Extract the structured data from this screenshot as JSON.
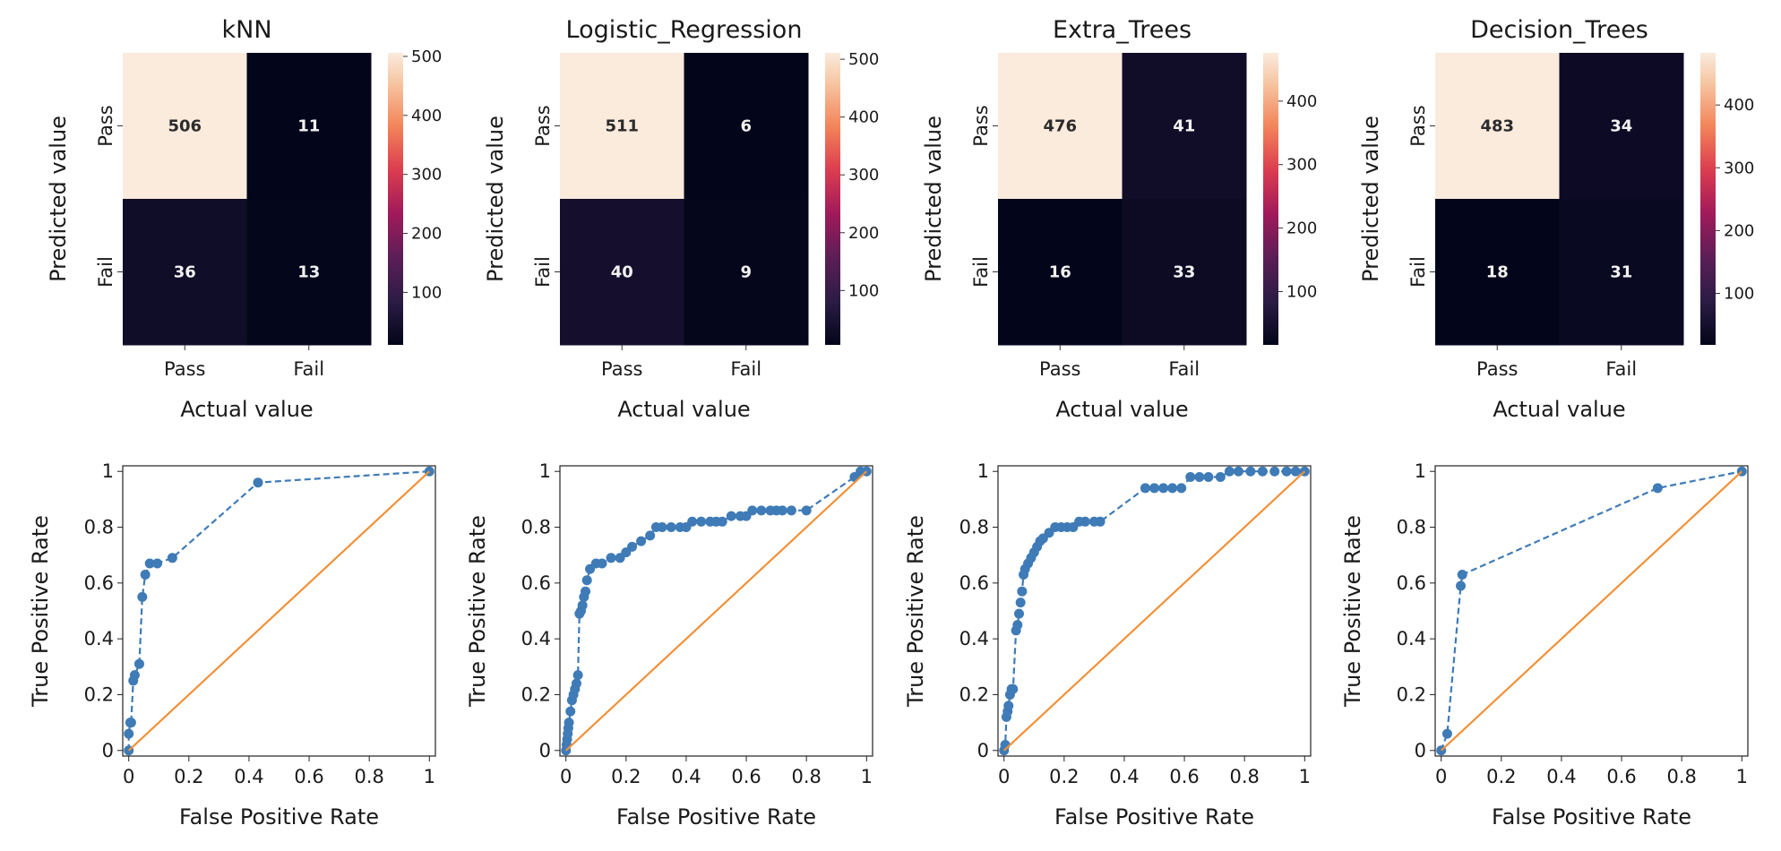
{
  "chart_data": [
    {
      "type": "heatmap",
      "title": "kNN",
      "xlabel": "Actual value",
      "ylabel": "Predicted value",
      "x_categories": [
        "Pass",
        "Fail"
      ],
      "y_categories": [
        "Pass",
        "Fail"
      ],
      "values": [
        [
          506,
          11
        ],
        [
          36,
          13
        ]
      ],
      "colorbar_ticks": [
        100,
        200,
        300,
        400,
        500
      ],
      "colorbar_range": [
        11,
        506
      ]
    },
    {
      "type": "heatmap",
      "title": "Logistic_Regression",
      "xlabel": "Actual value",
      "ylabel": "Predicted value",
      "x_categories": [
        "Pass",
        "Fail"
      ],
      "y_categories": [
        "Pass",
        "Fail"
      ],
      "values": [
        [
          511,
          6
        ],
        [
          40,
          9
        ]
      ],
      "colorbar_ticks": [
        100,
        200,
        300,
        400,
        500
      ],
      "colorbar_range": [
        6,
        511
      ]
    },
    {
      "type": "heatmap",
      "title": "Extra_Trees",
      "xlabel": "Actual value",
      "ylabel": "Predicted value",
      "x_categories": [
        "Pass",
        "Fail"
      ],
      "y_categories": [
        "Pass",
        "Fail"
      ],
      "values": [
        [
          476,
          41
        ],
        [
          16,
          33
        ]
      ],
      "colorbar_ticks": [
        100,
        200,
        300,
        400
      ],
      "colorbar_range": [
        16,
        476
      ]
    },
    {
      "type": "heatmap",
      "title": "Decision_Trees",
      "xlabel": "Actual value",
      "ylabel": "Predicted value",
      "x_categories": [
        "Pass",
        "Fail"
      ],
      "y_categories": [
        "Pass",
        "Fail"
      ],
      "values": [
        [
          483,
          34
        ],
        [
          18,
          31
        ]
      ],
      "colorbar_ticks": [
        100,
        200,
        300,
        400
      ],
      "colorbar_range": [
        18,
        483
      ]
    },
    {
      "type": "line",
      "xlabel": "False Positive Rate",
      "ylabel": "True Positive Rate",
      "xlim": [
        -0.02,
        1.02
      ],
      "ylim": [
        -0.02,
        1.02
      ],
      "xticks": [
        0,
        0.2,
        0.4,
        0.6,
        0.8,
        1.0
      ],
      "yticks": [
        0,
        0.2,
        0.4,
        0.6,
        0.8,
        1.0
      ],
      "series": [
        {
          "style": "dashed-markers",
          "color": "#3f7bb6",
          "x": [
            0,
            0,
            0.005,
            0.008,
            0.015,
            0.02,
            0.035,
            0.045,
            0.055,
            0.07,
            0.095,
            0.145,
            0.43,
            1.0
          ],
          "y": [
            0,
            0.06,
            0.1,
            0.1,
            0.25,
            0.27,
            0.31,
            0.55,
            0.63,
            0.67,
            0.67,
            0.69,
            0.96,
            1.0
          ]
        },
        {
          "style": "solid",
          "color": "#f0913a",
          "x": [
            0,
            1
          ],
          "y": [
            0,
            1
          ]
        }
      ]
    },
    {
      "type": "line",
      "xlabel": "False Positive Rate",
      "ylabel": "True Positive Rate",
      "xlim": [
        -0.02,
        1.02
      ],
      "ylim": [
        -0.02,
        1.02
      ],
      "xticks": [
        0,
        0.2,
        0.4,
        0.6,
        0.8,
        1.0
      ],
      "yticks": [
        0,
        0.2,
        0.4,
        0.6,
        0.8,
        1.0
      ],
      "series": [
        {
          "style": "dashed-markers",
          "color": "#3f7bb6",
          "x": [
            0,
            0.002,
            0.004,
            0.006,
            0.008,
            0.01,
            0.015,
            0.02,
            0.025,
            0.03,
            0.035,
            0.04,
            0.045,
            0.05,
            0.055,
            0.06,
            0.065,
            0.07,
            0.08,
            0.1,
            0.12,
            0.15,
            0.18,
            0.2,
            0.22,
            0.25,
            0.28,
            0.3,
            0.32,
            0.35,
            0.38,
            0.4,
            0.42,
            0.45,
            0.48,
            0.5,
            0.52,
            0.55,
            0.58,
            0.6,
            0.62,
            0.65,
            0.68,
            0.7,
            0.72,
            0.75,
            0.8,
            0.96,
            0.98,
            1.0
          ],
          "y": [
            0,
            0.02,
            0.04,
            0.06,
            0.08,
            0.1,
            0.14,
            0.18,
            0.2,
            0.22,
            0.24,
            0.27,
            0.49,
            0.5,
            0.52,
            0.55,
            0.57,
            0.61,
            0.65,
            0.67,
            0.67,
            0.69,
            0.69,
            0.71,
            0.73,
            0.75,
            0.77,
            0.8,
            0.8,
            0.8,
            0.8,
            0.8,
            0.82,
            0.82,
            0.82,
            0.82,
            0.82,
            0.84,
            0.84,
            0.84,
            0.86,
            0.86,
            0.86,
            0.86,
            0.86,
            0.86,
            0.86,
            0.98,
            1.0,
            1.0
          ]
        },
        {
          "style": "solid",
          "color": "#f0913a",
          "x": [
            0,
            1
          ],
          "y": [
            0,
            1
          ]
        }
      ]
    },
    {
      "type": "line",
      "xlabel": "False Positive Rate",
      "ylabel": "True Positive Rate",
      "xlim": [
        -0.02,
        1.02
      ],
      "ylim": [
        -0.02,
        1.02
      ],
      "xticks": [
        0,
        0.2,
        0.4,
        0.6,
        0.8,
        1.0
      ],
      "yticks": [
        0,
        0.2,
        0.4,
        0.6,
        0.8,
        1.0
      ],
      "series": [
        {
          "style": "dashed-markers",
          "color": "#3f7bb6",
          "x": [
            0,
            0.004,
            0.008,
            0.012,
            0.015,
            0.02,
            0.025,
            0.03,
            0.04,
            0.045,
            0.05,
            0.055,
            0.06,
            0.065,
            0.07,
            0.08,
            0.09,
            0.1,
            0.11,
            0.12,
            0.13,
            0.15,
            0.17,
            0.19,
            0.21,
            0.23,
            0.25,
            0.27,
            0.3,
            0.32,
            0.47,
            0.5,
            0.53,
            0.56,
            0.59,
            0.62,
            0.65,
            0.68,
            0.72,
            0.75,
            0.78,
            0.82,
            0.86,
            0.9,
            0.94,
            0.97,
            1.0
          ],
          "y": [
            0,
            0.02,
            0.12,
            0.14,
            0.16,
            0.2,
            0.22,
            0.22,
            0.43,
            0.45,
            0.49,
            0.53,
            0.57,
            0.63,
            0.65,
            0.67,
            0.69,
            0.71,
            0.73,
            0.75,
            0.76,
            0.78,
            0.8,
            0.8,
            0.8,
            0.8,
            0.82,
            0.82,
            0.82,
            0.82,
            0.94,
            0.94,
            0.94,
            0.94,
            0.94,
            0.98,
            0.98,
            0.98,
            0.98,
            1.0,
            1.0,
            1.0,
            1.0,
            1.0,
            1.0,
            1.0,
            1.0
          ]
        },
        {
          "style": "solid",
          "color": "#f0913a",
          "x": [
            0,
            1
          ],
          "y": [
            0,
            1
          ]
        }
      ]
    },
    {
      "type": "line",
      "xlabel": "False Positive Rate",
      "ylabel": "True Positive Rate",
      "xlim": [
        -0.02,
        1.02
      ],
      "ylim": [
        -0.02,
        1.02
      ],
      "xticks": [
        0,
        0.2,
        0.4,
        0.6,
        0.8,
        1.0
      ],
      "yticks": [
        0,
        0.2,
        0.4,
        0.6,
        0.8,
        1.0
      ],
      "series": [
        {
          "style": "dashed-markers",
          "color": "#3f7bb6",
          "x": [
            0,
            0.02,
            0.065,
            0.07,
            0.72,
            1.0
          ],
          "y": [
            0,
            0.06,
            0.59,
            0.63,
            0.94,
            1.0
          ]
        },
        {
          "style": "solid",
          "color": "#f0913a",
          "x": [
            0,
            1
          ],
          "y": [
            0,
            1
          ]
        }
      ]
    }
  ]
}
